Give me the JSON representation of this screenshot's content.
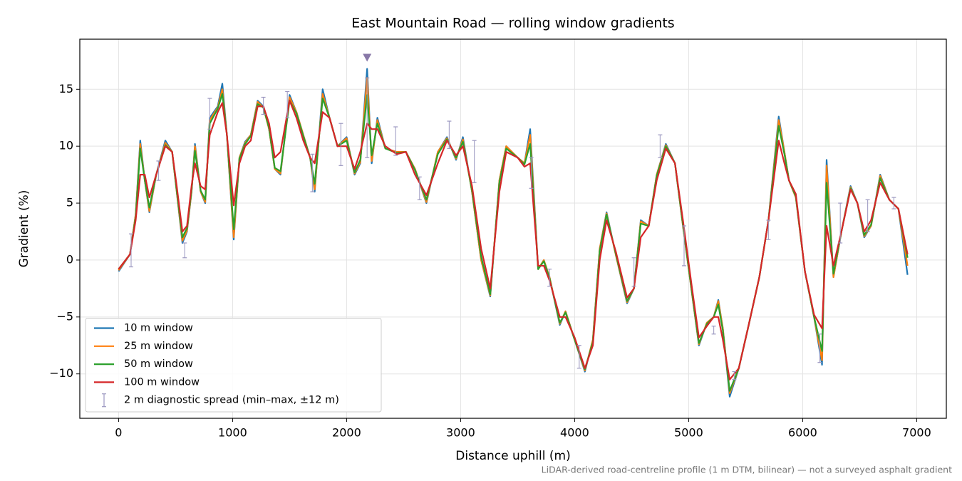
{
  "chart_data": {
    "type": "line",
    "title": "East Mountain Road — rolling window gradients",
    "xlabel": "Distance uphill (m)",
    "ylabel": "Gradient (%)",
    "footnote": "LiDAR-derived road-centreline profile (1 m DTM, bilinear) — not a surveyed asphalt gradient",
    "xlim": [
      -340,
      7260
    ],
    "ylim": [
      -13.9,
      19.4
    ],
    "xticks": [
      0,
      1000,
      2000,
      3000,
      4000,
      5000,
      6000,
      7000
    ],
    "yticks": [
      {
        "value": -10,
        "label": "−10"
      },
      {
        "value": -5,
        "label": "−5"
      },
      0,
      5,
      10,
      15
    ],
    "grid": true,
    "legend": "lower left",
    "x": [
      0,
      100,
      150,
      190,
      230,
      270,
      330,
      410,
      470,
      510,
      560,
      600,
      640,
      670,
      720,
      760,
      800,
      870,
      910,
      950,
      1010,
      1060,
      1110,
      1160,
      1220,
      1270,
      1320,
      1370,
      1420,
      1500,
      1560,
      1620,
      1680,
      1720,
      1790,
      1850,
      1920,
      2000,
      2070,
      2120,
      2180,
      2220,
      2270,
      2340,
      2440,
      2520,
      2600,
      2700,
      2800,
      2880,
      2960,
      3020,
      3100,
      3180,
      3260,
      3340,
      3400,
      3500,
      3560,
      3610,
      3680,
      3730,
      3780,
      3870,
      3920,
      4000,
      4090,
      4160,
      4220,
      4280,
      4360,
      4460,
      4520,
      4580,
      4650,
      4720,
      4800,
      4880,
      4950,
      5030,
      5090,
      5160,
      5220,
      5260,
      5300,
      5360,
      5440,
      5520,
      5620,
      5700,
      5790,
      5840,
      5880,
      5940,
      6020,
      6100,
      6170,
      6210,
      6270,
      6340,
      6420,
      6480,
      6540,
      6600,
      6680,
      6760,
      6840,
      6920
    ],
    "series": [
      {
        "name": "10 m window",
        "color": "#1f77b4",
        "values": [
          -1,
          0.5,
          4,
          10.5,
          7,
          4.2,
          7.5,
          10.5,
          9.5,
          6,
          1.5,
          2.5,
          6,
          10.2,
          6,
          5,
          12.5,
          13.5,
          15.5,
          11,
          1.8,
          9,
          10.4,
          11,
          14,
          13.5,
          11.5,
          8,
          7.5,
          14.5,
          13,
          11,
          9,
          6,
          15,
          12.5,
          10,
          10.8,
          7.5,
          8.5,
          16.8,
          8.5,
          12.5,
          9.8,
          9.5,
          9.5,
          8,
          5,
          9.5,
          10.8,
          8.8,
          10.8,
          6,
          0,
          -3.2,
          7,
          10,
          9,
          8.5,
          11.5,
          -0.8,
          0,
          -1.5,
          -5.7,
          -4.5,
          -7,
          -9.8,
          -7,
          1,
          4.2,
          0.5,
          -3.8,
          -2.5,
          3.5,
          3,
          7.5,
          10.2,
          8.5,
          3,
          -3,
          -7.5,
          -5.5,
          -5,
          -3.5,
          -6,
          -12,
          -9.5,
          -6,
          -1.5,
          3.5,
          12.6,
          9.5,
          7,
          5.5,
          -1,
          -5,
          -9.2,
          8.8,
          -1.5,
          2.5,
          6.5,
          5,
          2,
          3,
          7.5,
          5.3,
          4.5,
          -1.3
        ]
      },
      {
        "name": "25 m window",
        "color": "#ff7f0e",
        "values": [
          -0.9,
          0.5,
          4,
          10.2,
          7,
          4.3,
          7.5,
          10.3,
          9.5,
          6,
          1.7,
          2.6,
          6,
          10,
          6,
          5.1,
          12.3,
          13.4,
          15,
          11,
          2,
          9,
          10.3,
          11,
          13.9,
          13.4,
          11.5,
          8,
          7.6,
          14.3,
          13,
          11,
          9,
          6.2,
          14.6,
          12.5,
          10,
          10.7,
          7.6,
          8.6,
          16,
          8.7,
          12.3,
          9.8,
          9.5,
          9.5,
          8,
          5.1,
          9.5,
          10.7,
          8.9,
          10.6,
          6,
          0,
          -3.1,
          7,
          10,
          9,
          8.5,
          11,
          -0.8,
          0,
          -1.5,
          -5.6,
          -4.5,
          -7,
          -9.7,
          -7,
          1,
          4.1,
          0.5,
          -3.7,
          -2.5,
          3.4,
          3,
          7.5,
          10.1,
          8.5,
          3,
          -3,
          -7.4,
          -5.5,
          -5,
          -3.6,
          -6,
          -11.7,
          -9.5,
          -6,
          -1.5,
          3.5,
          12.3,
          9.5,
          7,
          5.5,
          -1,
          -5,
          -8.8,
          8.3,
          -1.5,
          2.5,
          6.4,
          5,
          2.1,
          3,
          7.4,
          5.3,
          4.5,
          -0.5
        ]
      },
      {
        "name": "50 m window",
        "color": "#2ca02c",
        "values": [
          -0.8,
          0.5,
          3.8,
          9.8,
          7,
          4.6,
          7.5,
          10.1,
          9.5,
          6.1,
          2,
          2.8,
          6.1,
          9.6,
          6.1,
          5.3,
          12,
          13.3,
          14.6,
          11,
          2.7,
          8.9,
          10.2,
          10.9,
          13.7,
          13.4,
          11.6,
          8.1,
          7.8,
          14,
          12.9,
          10.9,
          9,
          6.7,
          14.2,
          12.5,
          10,
          10.5,
          7.7,
          8.8,
          14.5,
          9.2,
          12,
          9.8,
          9.4,
          9.5,
          7.9,
          5.3,
          9.3,
          10.6,
          9,
          10.4,
          6.1,
          0.3,
          -3,
          6.8,
          9.8,
          9,
          8.4,
          10.2,
          -0.8,
          -0.1,
          -1.6,
          -5.5,
          -4.6,
          -7,
          -9.6,
          -7.2,
          0.8,
          4,
          0.6,
          -3.6,
          -2.5,
          3.2,
          3,
          7.4,
          10,
          8.5,
          3.1,
          -2.9,
          -7.3,
          -5.6,
          -5,
          -3.9,
          -6.2,
          -11.5,
          -9.5,
          -6,
          -1.5,
          3.5,
          11.8,
          9.3,
          7,
          5.6,
          -1,
          -5,
          -8,
          6.8,
          -1.2,
          2.5,
          6.3,
          5,
          2.2,
          3.1,
          7.2,
          5.3,
          4.5,
          0.2
        ]
      },
      {
        "name": "100 m window",
        "color": "#d62728",
        "values": [
          -0.8,
          0.5,
          3.5,
          7.5,
          7.5,
          5.5,
          7.5,
          10,
          9.5,
          6.5,
          2.5,
          3,
          6.5,
          8.5,
          6.5,
          6.2,
          11,
          13,
          13.8,
          11,
          4.8,
          8.5,
          10,
          10.5,
          13.5,
          13.5,
          12,
          9,
          9.5,
          14,
          12.5,
          10.5,
          9,
          8.5,
          13,
          12.5,
          10,
          10,
          8,
          9.5,
          12,
          11.5,
          11.5,
          10,
          9.3,
          9.5,
          7.5,
          5.7,
          8.5,
          10.5,
          9.2,
          10,
          6.5,
          1,
          -2.5,
          6,
          9.5,
          9,
          8.2,
          8.5,
          -0.5,
          -0.5,
          -1.8,
          -5,
          -5,
          -6.8,
          -9.5,
          -7.5,
          0,
          3.5,
          0.8,
          -3.3,
          -2.5,
          2,
          3,
          7,
          9.8,
          8.5,
          3.5,
          -2.5,
          -6.8,
          -5.8,
          -5,
          -5,
          -7,
          -10.5,
          -9.5,
          -6,
          -1.5,
          3.5,
          10.5,
          8.5,
          7,
          5.8,
          -1,
          -4.8,
          -6,
          3,
          -0.5,
          2.5,
          6.2,
          5,
          2.5,
          3.5,
          6.8,
          5.3,
          4.5,
          0.5
        ]
      }
    ],
    "spread": {
      "name": "2 m diagnostic spread (min–max, ±12 m)",
      "color": "#9b97c0",
      "x": [
        110,
        350,
        580,
        800,
        1270,
        1480,
        1700,
        1950,
        2180,
        2430,
        2640,
        2900,
        3120,
        3620,
        3780,
        4040,
        4520,
        4750,
        4960,
        5220,
        5400,
        5700,
        6150,
        6330,
        6570,
        6800
      ],
      "lows": [
        -0.6,
        7,
        0.2,
        11.5,
        12.8,
        12.5,
        6,
        8.3,
        9,
        9.2,
        5.3,
        9.8,
        6.8,
        6.3,
        -2.3,
        -9.5,
        -2.3,
        9,
        -0.5,
        -6.5,
        -10.5,
        1.8,
        -9,
        1.5,
        2.5,
        4.5
      ],
      "highs": [
        2.3,
        8.7,
        1.5,
        14.2,
        14.3,
        14.8,
        9.3,
        12,
        16,
        11.7,
        7.3,
        12.2,
        10.5,
        9,
        -0.8,
        -7.5,
        0.2,
        11,
        3,
        -5.8,
        -9.8,
        3.5,
        -6.5,
        5,
        5.3,
        5.5
      ]
    },
    "peak_marker": {
      "x": 2180,
      "y": 17.8,
      "color": "#8878a8"
    }
  }
}
